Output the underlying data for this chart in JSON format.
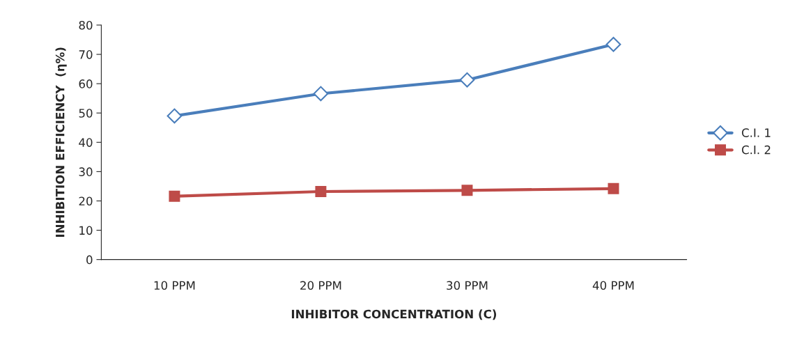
{
  "chart_data": {
    "type": "line",
    "xlabel": "INHIBITOR CONCENTRATION (C)",
    "ylabel": "INHIBITION EFFICIENCY  (η%)",
    "categories": [
      "10 PPM",
      "20 PPM",
      "30 PPM",
      "40 PPM"
    ],
    "series": [
      {
        "name": "C.I. 1",
        "color": "#4a7ebb",
        "marker": "diamond",
        "values": [
          49,
          56.6,
          61.3,
          73.4
        ]
      },
      {
        "name": "C.I. 2",
        "color": "#be4b48",
        "marker": "square",
        "values": [
          21.6,
          23.2,
          23.6,
          24.2
        ]
      }
    ],
    "ylim": [
      0,
      80
    ],
    "yticks": [
      0,
      10,
      20,
      30,
      40,
      50,
      60,
      70,
      80
    ],
    "grid": false,
    "legend": "right",
    "line_style": "solid"
  }
}
